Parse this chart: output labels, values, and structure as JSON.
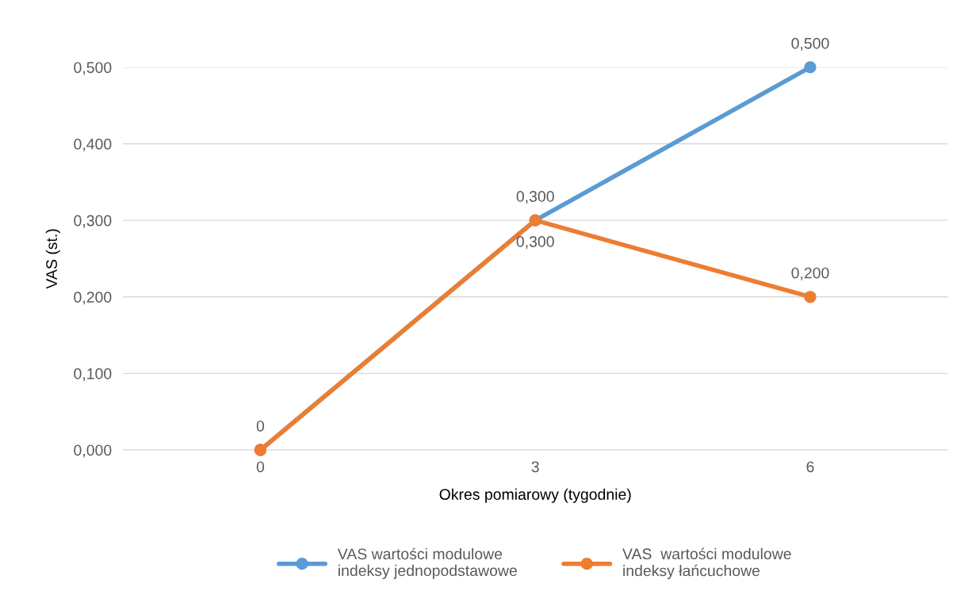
{
  "chart_data": {
    "type": "line",
    "xlabel": "Okres pomiarowy (tygodnie)",
    "ylabel": "VAS (st.)",
    "categories": [
      "0",
      "3",
      "6"
    ],
    "series": [
      {
        "name": "VAS wartości modulowe\nindeksy jednopodstawowe",
        "color": "#5b9bd5",
        "values": [
          0,
          0.3,
          0.5
        ],
        "value_labels": [
          "0",
          "0,300",
          "0,500"
        ]
      },
      {
        "name": "VAS  wartości modulowe\nindeksy łańcuchowe",
        "color": "#ed7d31",
        "values": [
          0,
          0.3,
          0.2
        ],
        "value_labels": [
          null,
          "0,300",
          "0,200"
        ]
      }
    ],
    "ylim": [
      0,
      0.5
    ],
    "yticks": [
      {
        "value": 0,
        "label": "0,000"
      },
      {
        "value": 0.1,
        "label": "0,100"
      },
      {
        "value": 0.2,
        "label": "0,200"
      },
      {
        "value": 0.3,
        "label": "0,300"
      },
      {
        "value": 0.4,
        "label": "0,400"
      },
      {
        "value": 0.5,
        "label": "0,500"
      }
    ],
    "grid": "y",
    "legend": "bottom",
    "marker": "circle",
    "line_style": "solid"
  }
}
